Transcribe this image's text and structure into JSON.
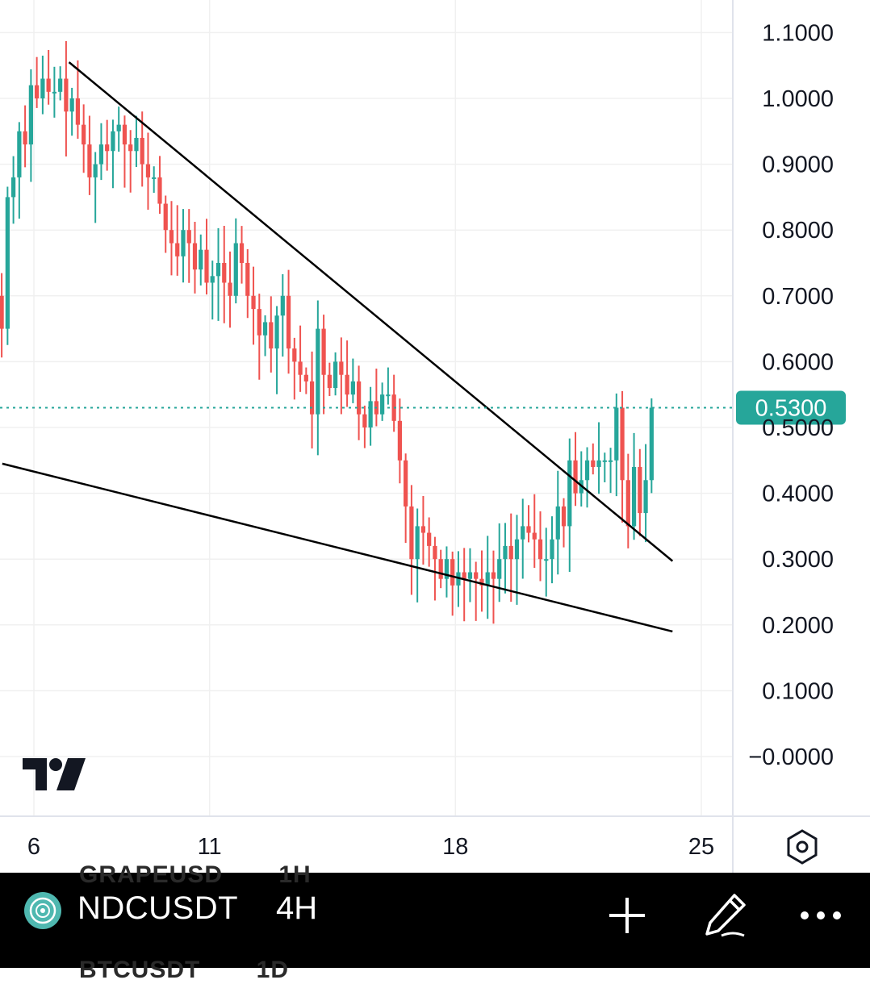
{
  "chart_data": {
    "type": "candlestick",
    "y_axis": {
      "ticks": [
        "1.1000",
        "1.0000",
        "0.9000",
        "0.8000",
        "0.7000",
        "0.6000",
        "0.5000",
        "0.4000",
        "0.3000",
        "0.2000",
        "0.1000",
        "−0.0000"
      ],
      "tick_values": [
        1.1,
        1.0,
        0.9,
        0.8,
        0.7,
        0.6,
        0.5,
        0.4,
        0.3,
        0.2,
        0.1,
        0.0
      ]
    },
    "x_axis": {
      "ticks": [
        "6",
        "11",
        "18",
        "25"
      ],
      "tick_days": [
        6,
        11,
        18,
        25
      ]
    },
    "last_price": {
      "label": "0.5300",
      "value": 0.53
    },
    "colors": {
      "up": "#26a69a",
      "down": "#ef5350",
      "price_line": "#26a69a",
      "trendline": "#000000",
      "grid": "#f0f0f0"
    },
    "trendlines": [
      {
        "name": "upper",
        "from": {
          "day": 7.0,
          "price": 1.055
        },
        "to": {
          "day": 24.18,
          "price": 0.297
        }
      },
      {
        "name": "lower",
        "from": {
          "day": 5.1,
          "price": 0.445
        },
        "to": {
          "day": 24.18,
          "price": 0.19
        }
      }
    ],
    "candles_4h_close": [
      0.65,
      0.85,
      0.88,
      0.95,
      0.93,
      1.02,
      1.0,
      1.03,
      1.01,
      1.01,
      1.03,
      0.98,
      1.0,
      0.96,
      0.93,
      0.88,
      0.9,
      0.93,
      0.92,
      0.95,
      0.96,
      0.93,
      0.92,
      0.94,
      0.9,
      0.88,
      0.88,
      0.84,
      0.8,
      0.78,
      0.76,
      0.8,
      0.78,
      0.74,
      0.77,
      0.72,
      0.73,
      0.75,
      0.72,
      0.7,
      0.78,
      0.75,
      0.7,
      0.68,
      0.64,
      0.66,
      0.62,
      0.67,
      0.7,
      0.62,
      0.6,
      0.58,
      0.57,
      0.52,
      0.65,
      0.58,
      0.56,
      0.6,
      0.58,
      0.55,
      0.57,
      0.52,
      0.5,
      0.54,
      0.52,
      0.55,
      0.55,
      0.51,
      0.45,
      0.38,
      0.3,
      0.35,
      0.34,
      0.32,
      0.3,
      0.27,
      0.3,
      0.26,
      0.28,
      0.27,
      0.28,
      0.27,
      0.26,
      0.28,
      0.27,
      0.3,
      0.32,
      0.3,
      0.33,
      0.35,
      0.34,
      0.33,
      0.3,
      0.3,
      0.33,
      0.38,
      0.35,
      0.45,
      0.4,
      0.42,
      0.45,
      0.44,
      0.45,
      0.45,
      0.45,
      0.53,
      0.42,
      0.35,
      0.44,
      0.37,
      0.42,
      0.53
    ]
  },
  "watermark": {
    "icon": "tradingview-logo"
  },
  "controls": {
    "settings_icon": "hexagon-settings-icon",
    "add_icon": "plus-icon",
    "draw_icon": "pencil-icon",
    "more_icon": "more-dots-icon"
  },
  "bottom_bar": {
    "symbol": "NDCUSDT",
    "timeframe": "4H",
    "symbol_icon": "coin-logo-icon",
    "ghost_above": {
      "symbol": "GRAPEUSD",
      "timeframe": "1H"
    },
    "ghost_below": {
      "symbol": "BTCUSDT",
      "timeframe": "1D"
    }
  }
}
